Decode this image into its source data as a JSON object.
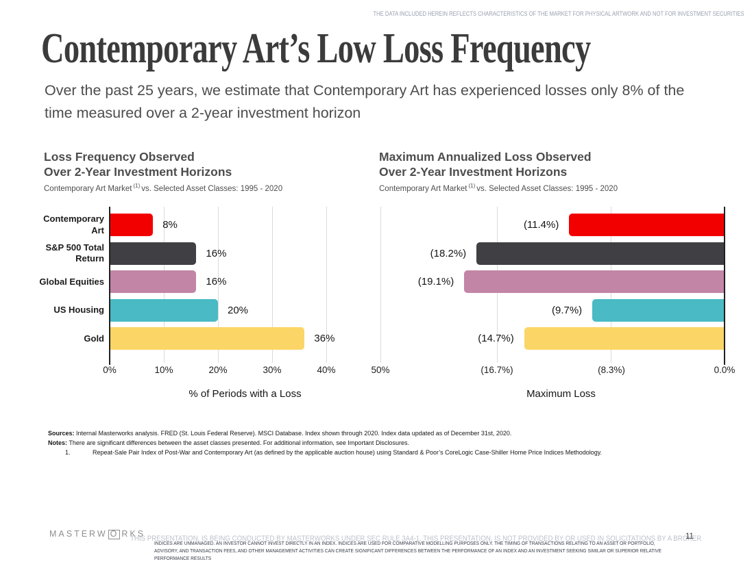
{
  "top_disclaimer": "THE DATA INCLUDED HEREIN REFLECTS CHARACTERISTICS OF THE MARKET FOR PHYSICAL ARTWORK AND NOT FOR INVESTMENT SECURITIES",
  "title": "Contemporary Art’s Low Loss Frequency",
  "lede": "Over the past 25 years, we estimate that Contemporary Art has experienced losses only 8% of the time measured over a 2-year investment horizon",
  "chart_data": [
    {
      "type": "bar",
      "orientation": "horizontal",
      "align": "left",
      "title_lines": [
        "Loss Frequency Observed",
        "Over 2-Year Investment Horizons"
      ],
      "subtitle_pre": "Contemporary Art Market",
      "subtitle_sup": "(1)",
      "subtitle_post": "vs. Selected Asset Classes: 1995 - 2020",
      "categories": [
        [
          "Contemporary",
          "Art"
        ],
        [
          "S&P 500 Total",
          "Return"
        ],
        [
          "Global Equities"
        ],
        [
          "US Housing"
        ],
        [
          "Gold"
        ]
      ],
      "values": [
        8,
        16,
        16,
        20,
        36
      ],
      "value_labels": [
        "8%",
        "16%",
        "16%",
        "20%",
        "36%"
      ],
      "colors": [
        "#f20000",
        "#3f3f44",
        "#c385a6",
        "#4abac4",
        "#fbd566"
      ],
      "xlabel": "% of Periods with a Loss",
      "xlim": [
        0,
        50
      ],
      "xticks": [
        {
          "label": "0%",
          "value": 0
        },
        {
          "label": "10%",
          "value": 10
        },
        {
          "label": "20%",
          "value": 20
        },
        {
          "label": "30%",
          "value": 30
        },
        {
          "label": "40%",
          "value": 40
        },
        {
          "label": "50%",
          "value": 50
        }
      ],
      "grid": true,
      "legend": false,
      "show_category_labels": true
    },
    {
      "type": "bar",
      "orientation": "horizontal",
      "align": "right",
      "title_lines": [
        "Maximum Annualized Loss Observed",
        "Over 2-Year Investment Horizons"
      ],
      "subtitle_pre": "Contemporary Art Market",
      "subtitle_sup": "(1)",
      "subtitle_post": "vs. Selected Asset Classes: 1995 - 2020",
      "categories": [
        [
          "Contemporary",
          "Art"
        ],
        [
          "S&P 500 Total",
          "Return"
        ],
        [
          "Global Equities"
        ],
        [
          "US Housing"
        ],
        [
          "Gold"
        ]
      ],
      "values": [
        11.4,
        18.2,
        19.1,
        9.7,
        14.7
      ],
      "value_labels": [
        "(11.4%)",
        "(18.2%)",
        "(19.1%)",
        "(9.7%)",
        "(14.7%)"
      ],
      "colors": [
        "#f20000",
        "#3f3f44",
        "#c385a6",
        "#4abac4",
        "#fbd566"
      ],
      "xlabel": "Maximum Loss",
      "xlim": [
        25,
        0
      ],
      "xticks": [
        {
          "label": "(16.7%)",
          "value": 16.7
        },
        {
          "label": "(8.3%)",
          "value": 8.3
        },
        {
          "label": "0.0%",
          "value": 0
        }
      ],
      "grid": true,
      "legend": false,
      "show_category_labels": false
    }
  ],
  "footer": {
    "sources_label": "Sources:",
    "sources_text": "Internal Masterworks analysis. FRED (St. Louis Federal Reserve). MSCI Database. Index shown through 2020. Index data updated as of December 31st, 2020.",
    "notes_label": "Notes:",
    "notes_text": "There are significant differences between the asset classes presented. For additional information, see Important Disclosures.",
    "footnote_number": "1.",
    "footnote_text": "Repeat-Sale Pair Index of Post-War and Contemporary Art (as defined by the applicable auction house) using Standard & Poor’s CoreLogic Case-Shiller Home Price Indices Methodology."
  },
  "bottom": {
    "logo_pre": "MASTERW",
    "logo_o": "O",
    "logo_post": "RKS",
    "disclaimer_gray": "THIS PRESENTATION, IS BEING CONDUCTED BY MASTERWORKS UNDER SEC RULE 3A4-1. THIS PRESENTATION, IS NOT PROVIDED BY OR USED IN SOLICITATIONS BY A BROKER",
    "disclaimer_dark": "INDICES ARE UNMANAGED. AN INVESTOR CANNOT INVEST DIRECTLY IN AN INDEX. INDICES ARE USED FOR COMPARATIVE MODELLING PURPOSES ONLY. THE TIMING OF TRANSACTIONS RELATING TO AN ASSET OR PORTFOLIO, ADVISORY, AND TRANSACTION FEES, AND OTHER MANAGEMENT ACTIVITIES CAN CREATE SIGNIFICANT DIFFERENCES BETWEEN THE PERFORMANCE OF AN INDEX AND AN INVESTMENT SEEKING SIMILAR OR SUPERIOR RELATIVE PERFORMANCE RESULTS",
    "page_number": "11"
  }
}
